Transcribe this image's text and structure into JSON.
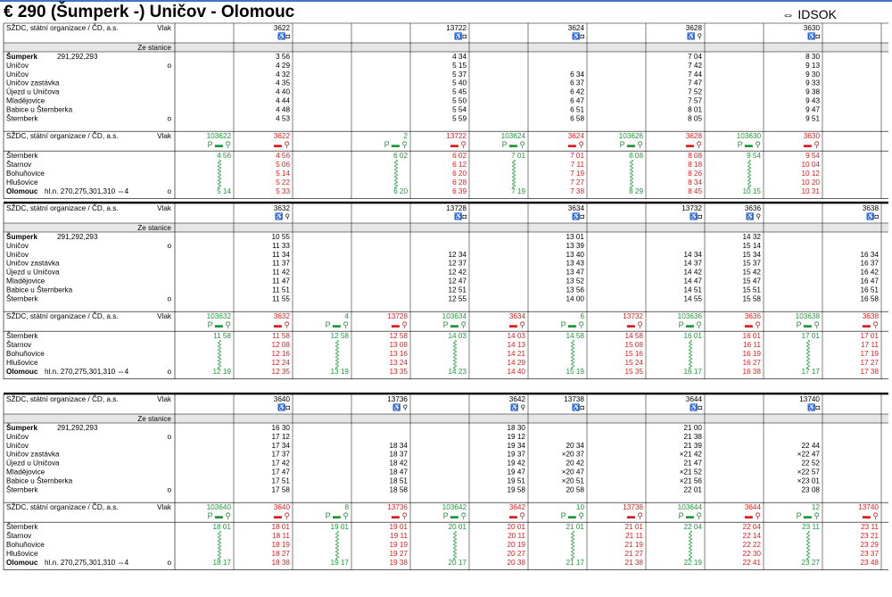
{
  "header": {
    "title": "€ 290  (Šumperk -) Uničov - Olomouc",
    "brand": "⇔ IDSOK"
  },
  "labels": {
    "operator": "SŽDC, státní organizace / ČD, a.s.",
    "vlak": "Vlak",
    "ze_stanice": "Ze stanice",
    "sumperk": "Šumperk",
    "sumperk_ref": "291,292,293",
    "unicov": "Uničov",
    "unicov_z": "Uničov zastávka",
    "ujezd": "Újezd u Uničova",
    "mladejovice": "Mladějovice",
    "babice": "Babice u Šternberka",
    "sternberk": "Šternberk",
    "starnov": "Štarnov",
    "bohunovice": "Bohuňovice",
    "hlusovice": "Hlušovice",
    "olomouc": "Olomouc",
    "olomouc_ref": "hl.n. 270,275,301,310 ⇔4",
    "o": "o"
  },
  "blocks": [
    {
      "train_cols": [
        1,
        4,
        6,
        8,
        10
      ],
      "train": [
        "",
        "3622",
        "",
        "",
        "13722",
        "",
        "3624",
        "",
        "3628",
        "",
        "3630",
        ""
      ],
      "sym1": [
        "",
        "♿◘",
        "",
        "",
        "♿◘",
        "",
        "♿◘",
        "",
        "♿ ⚲",
        "",
        "♿◘",
        ""
      ],
      "rail": [
        [
          "",
          "3 56",
          "",
          "",
          "4 34",
          "",
          "",
          "",
          "7 04",
          "",
          "8 30",
          ""
        ],
        [
          "",
          "4 29",
          "",
          "",
          "5 15",
          "",
          "",
          "",
          "7 42",
          "",
          "9 13",
          ""
        ],
        [
          "",
          "4 32",
          "",
          "",
          "5 37",
          "",
          "6 34",
          "",
          "7 44",
          "",
          "9 30",
          ""
        ],
        [
          "",
          "4 35",
          "",
          "",
          "5 40",
          "",
          "6 37",
          "",
          "7 47",
          "",
          "9 33",
          ""
        ],
        [
          "",
          "4 40",
          "",
          "",
          "5 45",
          "",
          "6 42",
          "",
          "7 52",
          "",
          "9 38",
          ""
        ],
        [
          "",
          "4 44",
          "",
          "",
          "5 50",
          "",
          "6 47",
          "",
          "7 57",
          "",
          "9 43",
          ""
        ],
        [
          "",
          "4 48",
          "",
          "",
          "5 54",
          "",
          "6 51",
          "",
          "8 01",
          "",
          "9 47",
          ""
        ],
        [
          "",
          "4 53",
          "",
          "",
          "5 59",
          "",
          "6 58",
          "",
          "8 05",
          "",
          "9 51",
          ""
        ]
      ],
      "cont": [
        "103622",
        "3622",
        "",
        "2",
        "13722",
        "103624",
        "3624",
        "103626",
        "3628",
        "103630",
        "3630",
        ""
      ],
      "cont_color": [
        "g",
        "r",
        "",
        "g",
        "r",
        "g",
        "r",
        "g",
        "r",
        "g",
        "r",
        ""
      ],
      "sym2": [
        "P ▬ ⚲",
        "▬ ⚲",
        "",
        "P ▬ ⚲",
        "▬ ⚲",
        "P ▬ ⚲",
        "▬ ⚲",
        "P ▬ ⚲",
        "▬ ⚲",
        "P ▬ ⚲",
        "▬ ⚲",
        ""
      ],
      "bus": [
        [
          "4 56",
          "4 56",
          "",
          "6 02",
          "6 02",
          "7 01",
          "7 01",
          "8 08",
          "8 08",
          "9 54",
          "9 54",
          ""
        ],
        [
          "",
          "5 06",
          "",
          "",
          "6 12",
          "",
          "7 11",
          "",
          "8 18",
          "",
          "10 04",
          ""
        ],
        [
          "",
          "5 14",
          "",
          "",
          "6 20",
          "",
          "7 19",
          "",
          "8 26",
          "",
          "10 12",
          ""
        ],
        [
          "",
          "5 22",
          "",
          "",
          "6 28",
          "",
          "7 27",
          "",
          "8 34",
          "",
          "10 20",
          ""
        ],
        [
          "5 14",
          "5 33",
          "",
          "6 20",
          "6 39",
          "7 19",
          "7 38",
          "8 29",
          "8 45",
          "10 15",
          "10 31",
          ""
        ]
      ]
    },
    {
      "train_cols": [
        1,
        4,
        6,
        8,
        9,
        11
      ],
      "train": [
        "",
        "3632",
        "",
        "",
        "13728",
        "",
        "3634",
        "",
        "13732",
        "3636",
        "",
        "3638"
      ],
      "sym1": [
        "",
        "♿ ⚲",
        "",
        "",
        "♿◘",
        "",
        "♿◘",
        "",
        "♿◘",
        "♿ ⚲",
        "",
        "♿◘"
      ],
      "rail": [
        [
          "",
          "10 55",
          "",
          "",
          "",
          "",
          "13 01",
          "",
          "",
          "14 32",
          "",
          ""
        ],
        [
          "",
          "11 33",
          "",
          "",
          "",
          "",
          "13 39",
          "",
          "",
          "15 14",
          "",
          ""
        ],
        [
          "",
          "11 34",
          "",
          "",
          "12 34",
          "",
          "13 40",
          "",
          "14 34",
          "15 34",
          "",
          "16 34"
        ],
        [
          "",
          "11 37",
          "",
          "",
          "12 37",
          "",
          "13 43",
          "",
          "14 37",
          "15 37",
          "",
          "16 37"
        ],
        [
          "",
          "11 42",
          "",
          "",
          "12 42",
          "",
          "13 47",
          "",
          "14 42",
          "15 42",
          "",
          "16 42"
        ],
        [
          "",
          "11 47",
          "",
          "",
          "12 47",
          "",
          "13 52",
          "",
          "14 47",
          "15 47",
          "",
          "16 47"
        ],
        [
          "",
          "11 51",
          "",
          "",
          "12 51",
          "",
          "13 56",
          "",
          "14 51",
          "15 51",
          "",
          "16 51"
        ],
        [
          "",
          "11 55",
          "",
          "",
          "12 55",
          "",
          "14 00",
          "",
          "14 55",
          "15 58",
          "",
          "16 58"
        ]
      ],
      "cont": [
        "103632",
        "3632",
        "4",
        "13728",
        "103634",
        "3634",
        "6",
        "13732",
        "103636",
        "3636",
        "103638",
        "3638"
      ],
      "cont_color": [
        "g",
        "r",
        "g",
        "r",
        "g",
        "r",
        "g",
        "r",
        "g",
        "r",
        "g",
        "r"
      ],
      "sym2": [
        "P ▬ ⚲",
        "▬ ⚲",
        "P ▬ ⚲",
        "▬ ⚲",
        "P ▬ ⚲",
        "▬ ⚲",
        "P ▬ ⚲",
        "▬ ⚲",
        "P ▬ ⚲",
        "▬ ⚲",
        "P ▬ ⚲",
        "▬ ⚲"
      ],
      "bus": [
        [
          "11 58",
          "11 58",
          "12 58",
          "12 58",
          "14 03",
          "14 03",
          "14 58",
          "14 58",
          "16 01",
          "16 01",
          "17 01",
          "17 01"
        ],
        [
          "",
          "12 08",
          "",
          "13 08",
          "",
          "14 13",
          "",
          "15 08",
          "",
          "16 11",
          "",
          "17 11"
        ],
        [
          "",
          "12 16",
          "",
          "13 16",
          "",
          "14 21",
          "",
          "15 16",
          "",
          "16 19",
          "",
          "17 19"
        ],
        [
          "",
          "12 24",
          "",
          "13 24",
          "",
          "14 29",
          "",
          "15 24",
          "",
          "16 27",
          "",
          "17 27"
        ],
        [
          "12 19",
          "12 35",
          "13 19",
          "13 35",
          "14 23",
          "14 40",
          "15 19",
          "15 35",
          "16 17",
          "16 38",
          "17 17",
          "17 38"
        ]
      ]
    },
    {
      "train_cols": [
        1,
        3,
        5,
        6,
        8,
        10
      ],
      "train": [
        "",
        "3640",
        "",
        "13736",
        "",
        "3642",
        "13738",
        "",
        "3644",
        "",
        "13740",
        ""
      ],
      "sym1": [
        "",
        "♿◘",
        "",
        "♿ ⚲",
        "",
        "♿ ⚲",
        "♿◘",
        "",
        "♿◘",
        "",
        "♿◘",
        ""
      ],
      "rail": [
        [
          "",
          "16 30",
          "",
          "",
          "",
          "18 30",
          "",
          "",
          "21 00",
          "",
          "",
          ""
        ],
        [
          "",
          "17 12",
          "",
          "",
          "",
          "19 12",
          "",
          "",
          "21 38",
          "",
          "",
          ""
        ],
        [
          "",
          "17 34",
          "",
          "18 34",
          "",
          "19 34",
          "20 34",
          "",
          "21 39",
          "",
          "22 44",
          ""
        ],
        [
          "",
          "17 37",
          "",
          "18 37",
          "",
          "19 37",
          "×20 37",
          "",
          "×21 42",
          "",
          "×22 47",
          ""
        ],
        [
          "",
          "17 42",
          "",
          "18 42",
          "",
          "19 42",
          "20 42",
          "",
          "21 47",
          "",
          "22 52",
          ""
        ],
        [
          "",
          "17 47",
          "",
          "18 47",
          "",
          "19 47",
          "×20 47",
          "",
          "×21 52",
          "",
          "×22 57",
          ""
        ],
        [
          "",
          "17 51",
          "",
          "18 51",
          "",
          "19 51",
          "×20 51",
          "",
          "×21 56",
          "",
          "×23 01",
          ""
        ],
        [
          "",
          "17 58",
          "",
          "18 58",
          "",
          "19 58",
          "20 58",
          "",
          "22 01",
          "",
          "23 08",
          ""
        ]
      ],
      "cont": [
        "103640",
        "3640",
        "8",
        "13736",
        "103642",
        "3642",
        "10",
        "13738",
        "103644",
        "3644",
        "12",
        "13740"
      ],
      "cont_color": [
        "g",
        "r",
        "g",
        "r",
        "g",
        "r",
        "g",
        "r",
        "g",
        "r",
        "g",
        "r"
      ],
      "sym2": [
        "P ▬ ⚲",
        "▬ ⚲",
        "P ▬ ⚲",
        "▬ ⚲",
        "P ▬ ⚲",
        "▬ ⚲",
        "P ▬ ⚲",
        "▬ ⚲",
        "P ▬ ⚲",
        "▬ ⚲",
        "P ▬ ⚲",
        "▬ ⚲"
      ],
      "bus": [
        [
          "18 01",
          "18 01",
          "19 01",
          "19 01",
          "20 01",
          "20 01",
          "21 01",
          "21 01",
          "22 04",
          "22 04",
          "23 11",
          "23 11"
        ],
        [
          "",
          "18 11",
          "",
          "19 11",
          "",
          "20 11",
          "",
          "21 11",
          "",
          "22 14",
          "",
          "23 21"
        ],
        [
          "",
          "18 19",
          "",
          "19 19",
          "",
          "20 19",
          "",
          "21 19",
          "",
          "22 22",
          "",
          "23 29"
        ],
        [
          "",
          "18 27",
          "",
          "19 27",
          "",
          "20 27",
          "",
          "21 27",
          "",
          "22 30",
          "",
          "23 37"
        ],
        [
          "18 17",
          "18 38",
          "19 17",
          "19 38",
          "20 17",
          "20 38",
          "21 17",
          "21 38",
          "22 19",
          "22 41",
          "23 27",
          "23 48"
        ]
      ]
    }
  ]
}
